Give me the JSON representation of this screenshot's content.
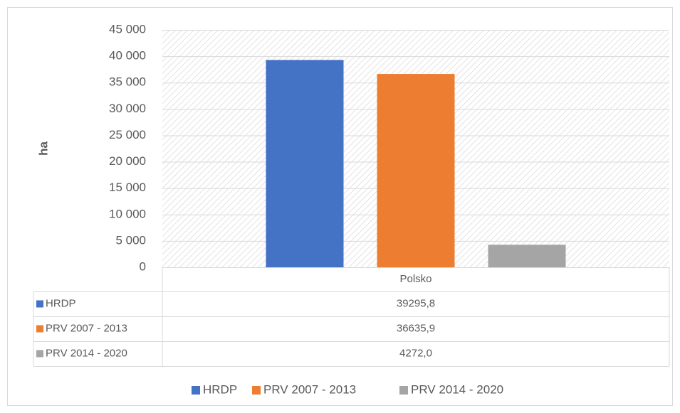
{
  "chart_data": {
    "type": "bar",
    "y_label": "ha",
    "categories": [
      "Polsko"
    ],
    "series": [
      {
        "name": "HRDP",
        "color": "#4472c4",
        "values": [
          39295.8
        ],
        "value_labels": [
          "39295,8"
        ]
      },
      {
        "name": "PRV 2007 - 2013",
        "color": "#ed7d31",
        "values": [
          36635.9
        ],
        "value_labels": [
          "36635,9"
        ]
      },
      {
        "name": "PRV 2014 - 2020",
        "color": "#a5a5a5",
        "values": [
          4272.0
        ],
        "value_labels": [
          "4272,0"
        ]
      }
    ],
    "ylim": [
      0,
      45000
    ],
    "yticks": [
      0,
      {
        "value": 5000,
        "label": "5 000"
      },
      {
        "value": 10000,
        "label": "10 000"
      },
      {
        "value": 15000,
        "label": "15 000"
      },
      {
        "value": 20000,
        "label": "20 000"
      },
      {
        "value": 25000,
        "label": "25 000"
      },
      {
        "value": 30000,
        "label": "30 000"
      },
      {
        "value": 35000,
        "label": "35 000"
      },
      {
        "value": 40000,
        "label": "40 000"
      },
      {
        "value": 45000,
        "label": "45 000"
      }
    ],
    "grid": true,
    "legend": "bottom",
    "data_table": true
  }
}
